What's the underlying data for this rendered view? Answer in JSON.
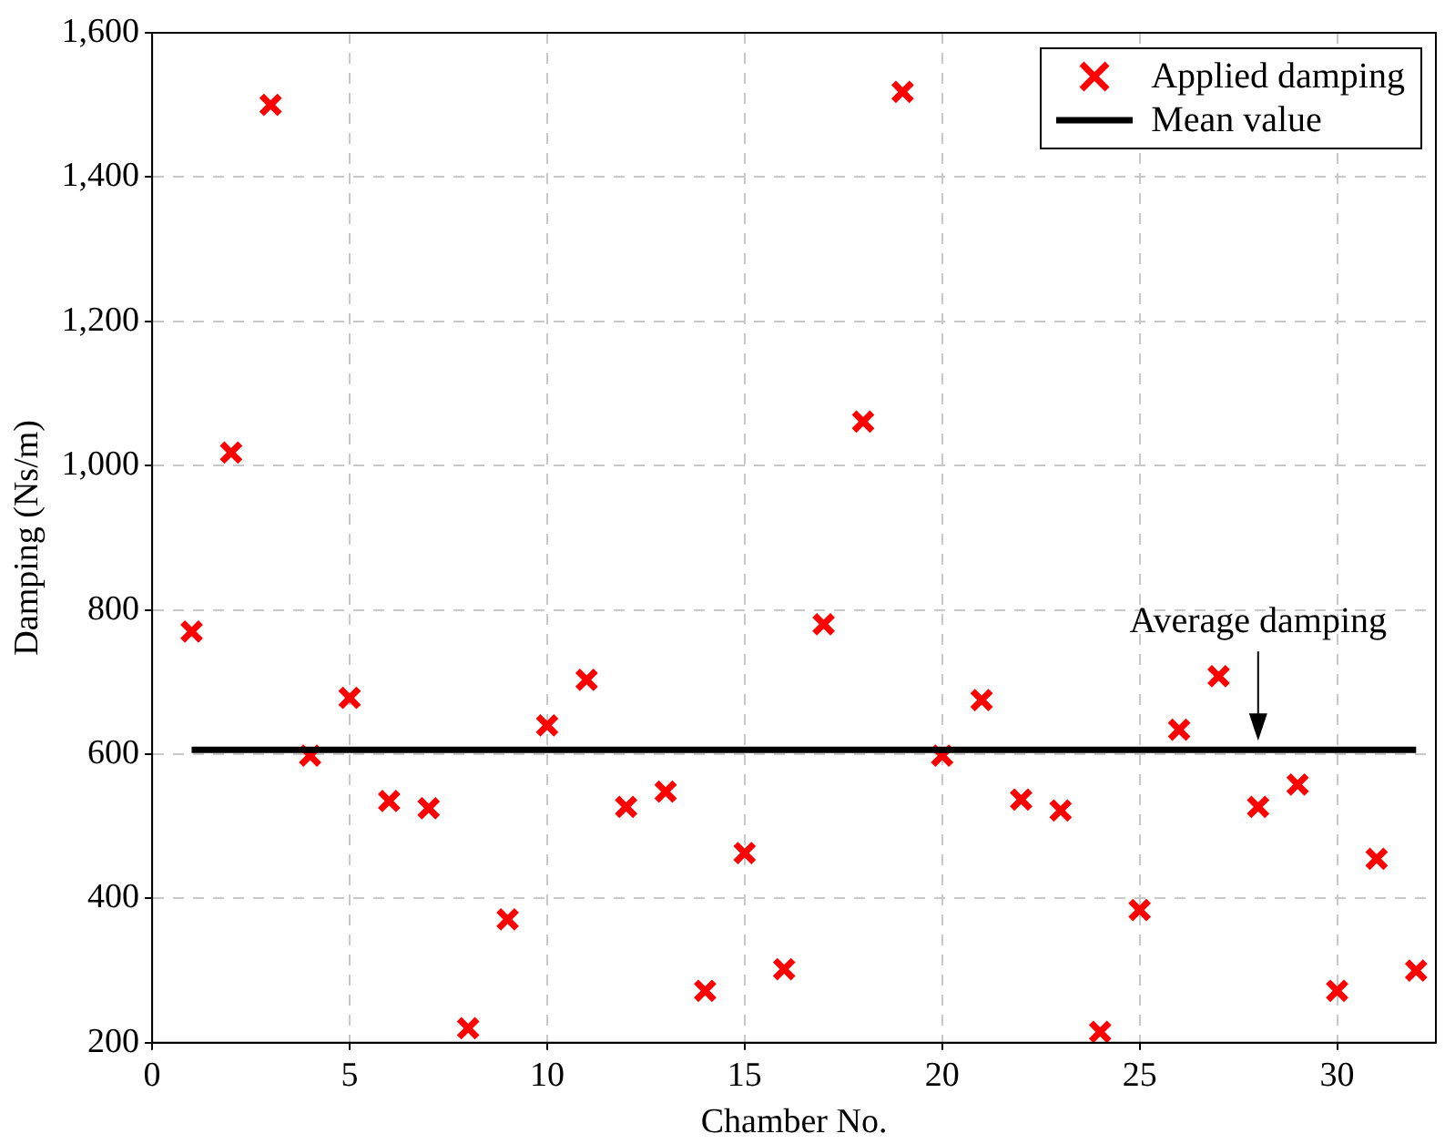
{
  "chart_data": {
    "type": "scatter",
    "xlabel": "Chamber No.",
    "ylabel": "Damping (Ns/m)",
    "x": [
      1,
      2,
      3,
      4,
      5,
      6,
      7,
      8,
      9,
      10,
      11,
      12,
      13,
      14,
      15,
      16,
      17,
      18,
      19,
      20,
      21,
      22,
      23,
      24,
      25,
      26,
      27,
      28,
      29,
      30,
      31,
      32
    ],
    "series": [
      {
        "name": "Applied damping",
        "color": "#ff0000",
        "marker": "cross",
        "values": [
          770,
          1018,
          1500,
          598,
          678,
          535,
          525,
          220,
          371,
          640,
          703,
          527,
          548,
          272,
          463,
          302,
          780,
          1061,
          1518,
          598,
          675,
          537,
          522,
          215,
          384,
          634,
          708,
          527,
          558,
          272,
          455,
          300
        ]
      },
      {
        "name": "Mean value",
        "type": "line",
        "color": "#000000",
        "marker": "none",
        "x": [
          1,
          32
        ],
        "values": [
          606,
          606
        ]
      }
    ],
    "xlim": [
      0,
      32.5
    ],
    "xticks": [
      0,
      5,
      10,
      15,
      20,
      25,
      30
    ],
    "ylim": [
      200,
      1600
    ],
    "yticks": [
      200,
      400,
      600,
      800,
      {
        "value": 1000,
        "label": "1,000"
      },
      {
        "value": 1200,
        "label": "1,200"
      },
      {
        "value": 1400,
        "label": "1,400"
      },
      {
        "value": 1600,
        "label": "1,600"
      }
    ],
    "grid": true,
    "legend": "top right",
    "line_style": "solid",
    "annotations": [
      {
        "text": "Average damping",
        "x": 28,
        "y": 606
      }
    ]
  }
}
